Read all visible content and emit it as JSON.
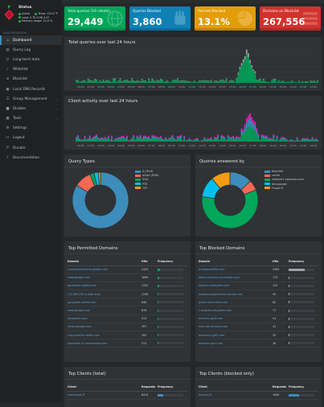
{
  "sidebar": {
    "status_title": "Status",
    "status": [
      {
        "left": "Active",
        "right": "Temp: 125.0 °F"
      },
      {
        "left": "Load: 0.78 0.96 4.47",
        "right": ""
      },
      {
        "left": "Memory usage: 14.0 %",
        "right": ""
      }
    ],
    "section_label": "MAIN NAVIGATION",
    "items": [
      {
        "label": "Dashboard",
        "icon": "home-icon",
        "glyph": "⌂"
      },
      {
        "label": "Query Log",
        "icon": "file-icon",
        "glyph": "▤"
      },
      {
        "label": "Long-term data",
        "icon": "history-icon",
        "glyph": "◷"
      },
      {
        "label": "Whitelist",
        "icon": "check-icon",
        "glyph": "✓"
      },
      {
        "label": "Blacklist",
        "icon": "ban-icon",
        "glyph": "⊘"
      },
      {
        "label": "Local DNS Records",
        "icon": "address-book-icon",
        "glyph": "▣"
      },
      {
        "label": "Group Management",
        "icon": "users-icon",
        "glyph": "☰"
      },
      {
        "label": "Disable",
        "icon": "stop-icon",
        "glyph": "■"
      },
      {
        "label": "Tools",
        "icon": "folder-icon",
        "glyph": "▦"
      },
      {
        "label": "Settings",
        "icon": "gear-icon",
        "glyph": "⚙"
      },
      {
        "label": "Logout",
        "icon": "logout-icon",
        "glyph": "↦"
      },
      {
        "label": "Donate",
        "icon": "paypal-icon",
        "glyph": "P"
      },
      {
        "label": "Documentation",
        "icon": "question-icon",
        "glyph": "?"
      }
    ]
  },
  "stats": [
    {
      "label": "Total queries (16 clients)",
      "value": "29,449",
      "color": "#00a65a",
      "icon": "globe-icon"
    },
    {
      "label": "Queries Blocked",
      "value": "3,860",
      "color": "#0f81b4",
      "icon": "hand-icon"
    },
    {
      "label": "Percent Blocked",
      "value": "13.1%",
      "color": "#e39d08",
      "icon": "pie-icon"
    },
    {
      "label": "Domains on Blocklist",
      "value": "267,556",
      "color": "#d2322d",
      "icon": "list-icon"
    }
  ],
  "total_queries_chart": {
    "title": "Total queries over last 24 hours",
    "x_ticks": [
      "00:00",
      "02:00",
      "04:00",
      "06:00",
      "08:00",
      "10:00",
      "12:00",
      "14:00",
      "16:00",
      "18:00",
      "20:00",
      "22:00"
    ],
    "x_tick_labels_short": [
      "00:00",
      "01:00",
      "02:00",
      "03:00",
      "04:00",
      "05:00",
      "06:00",
      "07:00",
      "08:00",
      "09:00",
      "10:00",
      "11:00",
      "12:00",
      "13:00",
      "14:00",
      "15:00",
      "16:00",
      "17:00",
      "18:00",
      "19:00",
      "20:00",
      "21:00",
      "22:00",
      "23:00"
    ],
    "colors": {
      "permitted": "#00a65a",
      "blocked": "#999999"
    }
  },
  "client_activity_chart": {
    "title": "Client activity over last 24 hours"
  },
  "query_types": {
    "title": "Query Types",
    "legend": [
      {
        "label": "A (IPv4)",
        "color": "#3c8dbc",
        "value": 68
      },
      {
        "label": "AAAA (IPv6)",
        "color": "#f56954",
        "value": 8
      },
      {
        "label": "SOA",
        "color": "#00a65a",
        "value": 2
      },
      {
        "label": "PTR",
        "color": "#00c0ef",
        "value": 2
      },
      {
        "label": "TXT",
        "color": "#f39c12",
        "value": 1
      }
    ]
  },
  "queries_answered": {
    "title": "Queries answered by",
    "legend": [
      {
        "label": "blocklist",
        "color": "#3c8dbc",
        "value": 13
      },
      {
        "label": "cache",
        "color": "#f56954",
        "value": 6
      },
      {
        "label": "resolver1.opendns.com",
        "color": "#00a65a",
        "value": 58
      },
      {
        "label": "dns.google",
        "color": "#00c0ef",
        "value": 12
      },
      {
        "label": "Frugal.ff",
        "color": "#f39c12",
        "value": 11
      }
    ]
  },
  "top_permitted": {
    "title": "Top Permitted Domains",
    "headers": [
      "Domain",
      "Hits",
      "Frequency"
    ],
    "rows": [
      {
        "domain": "connectivitycheck.gstatic.com",
        "hits": "2423",
        "pct": 0.08
      },
      {
        "domain": "www.google.com",
        "hits": "1690",
        "pct": 0.06
      },
      {
        "domain": "apresolve.spotify.com",
        "hits": "1352",
        "pct": 0.05
      },
      {
        "domain": "7.0.168.192.in-addr.arpa",
        "hits": "1290",
        "pct": 0.04
      },
      {
        "domain": "api.global.netflix.com",
        "hits": "840",
        "pct": 0.03
      },
      {
        "domain": "www.google.com",
        "hits": "676",
        "pct": 0.02
      },
      {
        "domain": "ssl.gstatic.com",
        "hits": "413",
        "pct": 0.015
      },
      {
        "domain": "mtalk.google.com",
        "hits": "397",
        "pct": 0.013
      },
      {
        "domain": "nrdp.prod.ftl.netflix.com",
        "hits": "395",
        "pct": 0.013
      },
      {
        "domain": "openlorte-s1.amazonaws.com",
        "hits": "313",
        "pct": 0.01
      }
    ]
  },
  "top_blocked": {
    "title": "Top Blocked Domains",
    "headers": [
      "Domain",
      "Hits",
      "Frequency"
    ],
    "rows": [
      {
        "domain": "ichnaea.netflix.com",
        "hits": "2409",
        "pct": 0.62
      },
      {
        "domain": "device-metrics-us.amazon.com",
        "hits": "170",
        "pct": 0.045
      },
      {
        "domain": "reports.crashlytics.com",
        "hits": "152",
        "pct": 0.04
      },
      {
        "domain": "roseburg.appmetrica.yandex.net",
        "hits": "95",
        "pct": 0.025
      },
      {
        "domain": "graph.accountkit.com",
        "hits": "82",
        "pct": 0.02
      },
      {
        "domain": "c.amazon-adsystem.com",
        "hits": "71",
        "pct": 0.018
      },
      {
        "domain": "beacons.gvt2.com",
        "hits": "54",
        "pct": 0.014
      },
      {
        "domain": "mas-sdk.amazon.com",
        "hits": "41",
        "pct": 0.011
      },
      {
        "domain": "beacons2.gvt2.com",
        "hits": "35",
        "pct": 0.009
      },
      {
        "domain": "beacons.gvt1.com",
        "hits": "30",
        "pct": 0.008
      }
    ]
  },
  "top_clients": {
    "title": "Top Clients (total)",
    "headers": [
      "Client",
      "Requests",
      "Frequency"
    ],
    "rows": [
      {
        "client": "mochicook.ff",
        "requests": "6414",
        "pct": 0.22
      }
    ]
  },
  "top_clients_blocked": {
    "title": "Top Clients (blocked only)",
    "headers": [
      "Client",
      "Requests",
      "Frequency"
    ],
    "rows": [
      {
        "client": "fotolock.ff",
        "requests": "1608",
        "pct": 0.42
      }
    ]
  }
}
